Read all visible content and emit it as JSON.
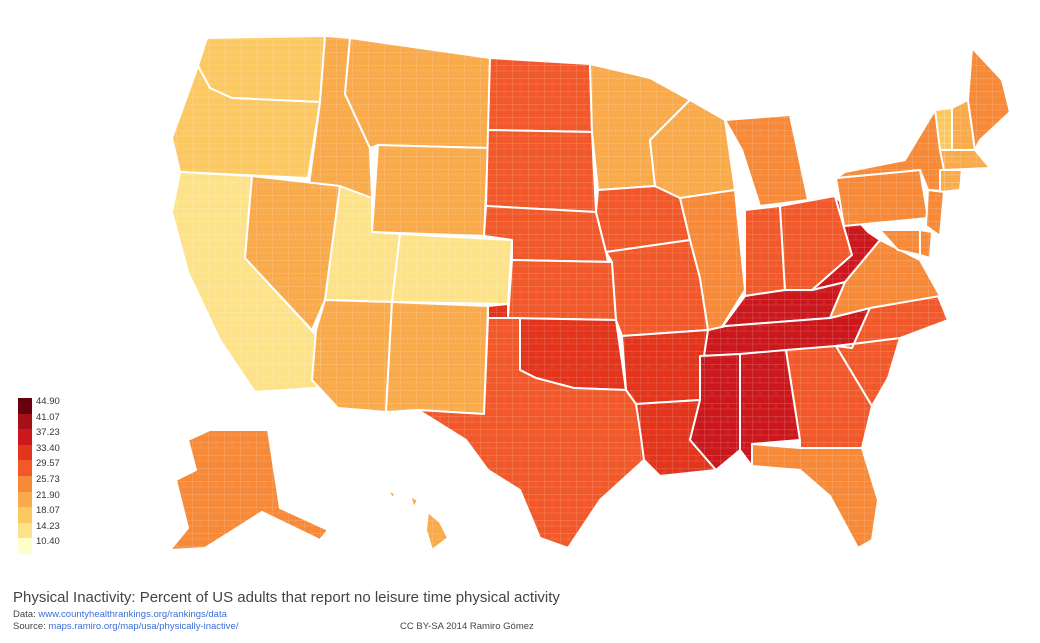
{
  "title": "Physical Inactivity: Percent of US adults that report no leisure time physical activity",
  "data_label": "Data:",
  "data_url": "www.countyhealthrankings.org/rankings/data",
  "source_label": "Source:",
  "source_url": "maps.ramiro.org/map/usa/physically-inactive/",
  "license": "CC BY-SA 2014 Ramiro Gómez",
  "legend": {
    "labels": [
      "44.90",
      "41.07",
      "37.23",
      "33.40",
      "29.57",
      "25.73",
      "21.90",
      "18.07",
      "14.23",
      "10.40"
    ],
    "colors": [
      "#67000d",
      "#a50f15",
      "#cb181d",
      "#e3341c",
      "#f2592a",
      "#f78a38",
      "#f9aa4a",
      "#fcc862",
      "#fde28a",
      "#ffffcc"
    ]
  },
  "map_data": {
    "type": "choropleth",
    "unit": "percent of adults",
    "range": [
      10.4,
      44.9
    ],
    "regions": [
      {
        "name": "WA",
        "value": 19
      },
      {
        "name": "OR",
        "value": 18
      },
      {
        "name": "CA",
        "value": 16
      },
      {
        "name": "ID",
        "value": 21
      },
      {
        "name": "NV",
        "value": 23
      },
      {
        "name": "MT",
        "value": 23
      },
      {
        "name": "WY",
        "value": 22
      },
      {
        "name": "UT",
        "value": 17
      },
      {
        "name": "CO",
        "value": 15
      },
      {
        "name": "AZ",
        "value": 21
      },
      {
        "name": "NM",
        "value": 22
      },
      {
        "name": "ND",
        "value": 30
      },
      {
        "name": "SD",
        "value": 31
      },
      {
        "name": "NE",
        "value": 30
      },
      {
        "name": "KS",
        "value": 28
      },
      {
        "name": "OK",
        "value": 34
      },
      {
        "name": "TX",
        "value": 28
      },
      {
        "name": "MN",
        "value": 24
      },
      {
        "name": "IA",
        "value": 28
      },
      {
        "name": "MO",
        "value": 30
      },
      {
        "name": "AR",
        "value": 34
      },
      {
        "name": "LA",
        "value": 33
      },
      {
        "name": "WI",
        "value": 24
      },
      {
        "name": "IL",
        "value": 27
      },
      {
        "name": "MI",
        "value": 26
      },
      {
        "name": "IN",
        "value": 30
      },
      {
        "name": "OH",
        "value": 29
      },
      {
        "name": "KY",
        "value": 36
      },
      {
        "name": "TN",
        "value": 35
      },
      {
        "name": "MS",
        "value": 37
      },
      {
        "name": "AL",
        "value": 36
      },
      {
        "name": "GA",
        "value": 28
      },
      {
        "name": "FL",
        "value": 27
      },
      {
        "name": "SC",
        "value": 29
      },
      {
        "name": "NC",
        "value": 29
      },
      {
        "name": "VA",
        "value": 26
      },
      {
        "name": "WV",
        "value": 37
      },
      {
        "name": "PA",
        "value": 27
      },
      {
        "name": "NY",
        "value": 25
      },
      {
        "name": "VT",
        "value": 20
      },
      {
        "name": "NH",
        "value": 21
      },
      {
        "name": "ME",
        "value": 25
      },
      {
        "name": "MA",
        "value": 21
      },
      {
        "name": "CT",
        "value": 22
      },
      {
        "name": "NJ",
        "value": 26
      },
      {
        "name": "DE",
        "value": 27
      },
      {
        "name": "MD",
        "value": 26
      },
      {
        "name": "AK",
        "value": 25
      },
      {
        "name": "HI",
        "value": 22
      }
    ]
  }
}
